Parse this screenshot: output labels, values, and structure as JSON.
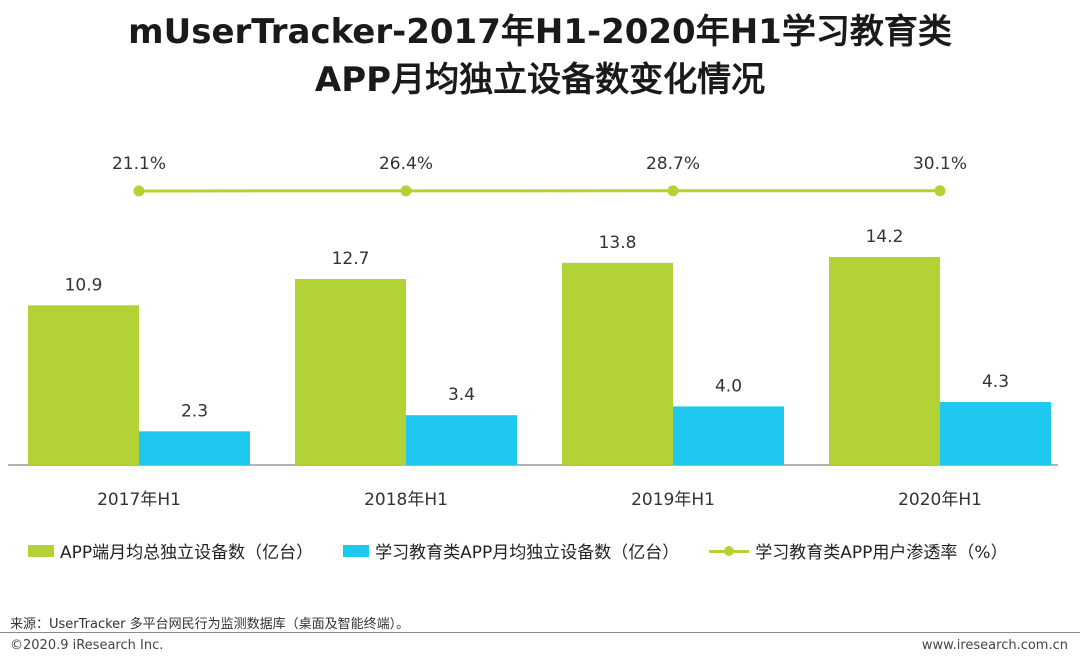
{
  "title_line1": "mUserTracker-2017年H1-2020年H1学习教育类",
  "title_line2": "APP月均独立设备数变化情况",
  "colors": {
    "green": "#b3d235",
    "blue": "#1fc8ee",
    "axis": "#999999",
    "text": "#333333"
  },
  "chart_data": {
    "type": "bar",
    "categories": [
      "2017年H1",
      "2018年H1",
      "2019年H1",
      "2020年H1"
    ],
    "series": [
      {
        "name": "APP端月均总独立设备数（亿台）",
        "kind": "bar",
        "values": [
          10.9,
          12.7,
          13.8,
          14.2
        ]
      },
      {
        "name": "学习教育类APP月均独立设备数（亿台）",
        "kind": "bar",
        "values": [
          2.3,
          3.4,
          4.0,
          4.3
        ]
      },
      {
        "name": "学习教育类APP用户渗透率（%）",
        "kind": "line",
        "values": [
          21.1,
          26.4,
          28.7,
          30.1
        ],
        "labels": [
          "21.1%",
          "26.4%",
          "28.7%",
          "30.1%"
        ]
      }
    ],
    "value_labels": [
      [
        "10.9",
        "12.7",
        "13.8",
        "14.2"
      ],
      [
        "2.3",
        "3.4",
        "4.0",
        "4.3"
      ]
    ],
    "ylim": [
      0,
      14.2
    ],
    "legend_position": "bottom"
  },
  "legend": {
    "item1": "APP端月均总独立设备数（亿台）",
    "item2": "学习教育类APP月均独立设备数（亿台）",
    "item3": "学习教育类APP用户渗透率（%）"
  },
  "source": "来源：UserTracker 多平台网民行为监测数据库（桌面及智能终端）。",
  "copyright": "©2020.9 iResearch Inc.",
  "website": "www.iresearch.com.cn"
}
